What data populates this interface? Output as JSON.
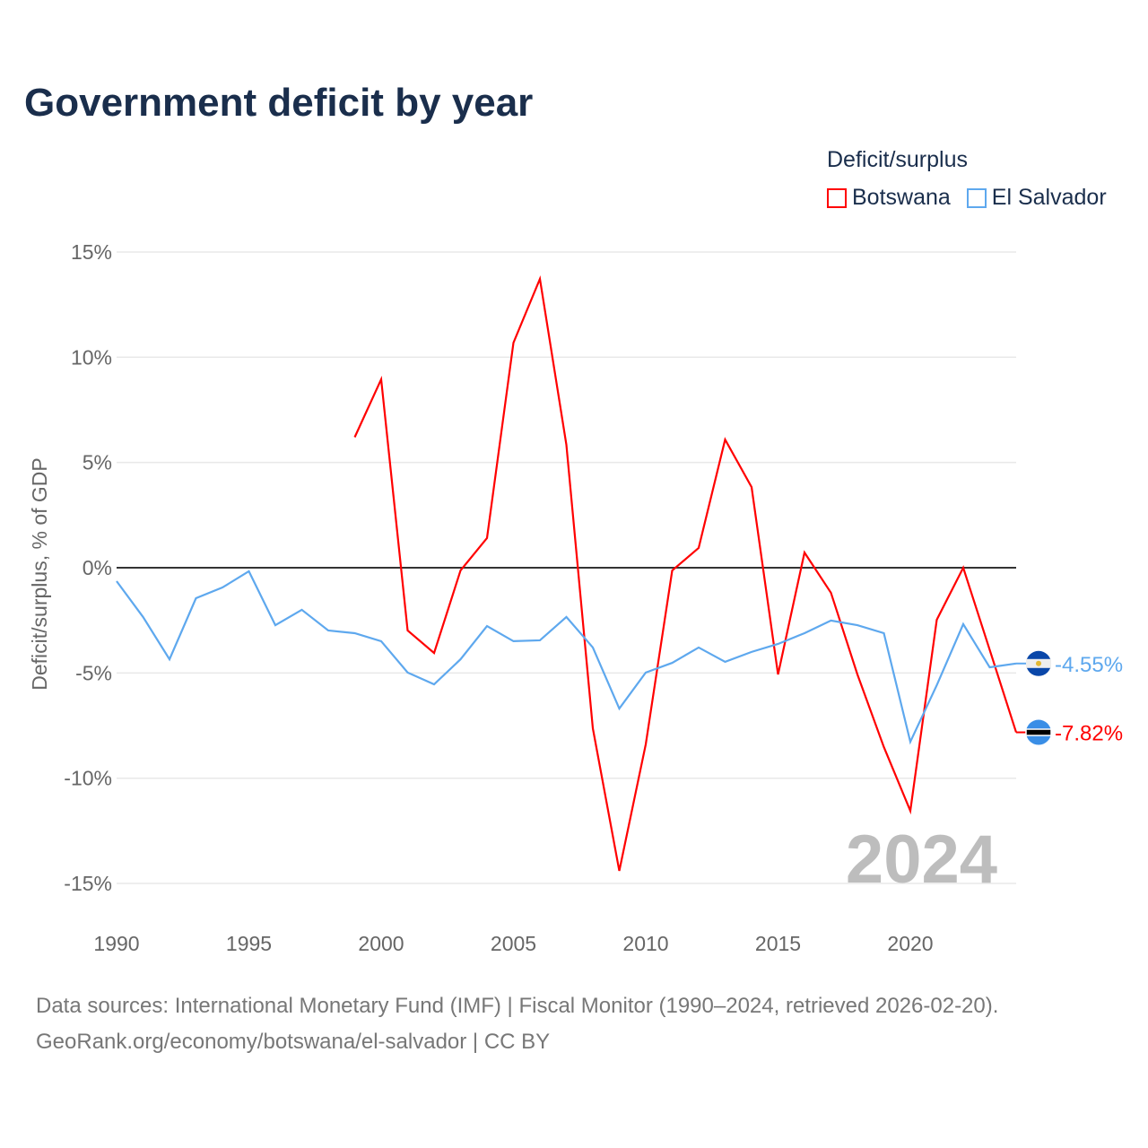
{
  "title": "Government deficit by year",
  "legend_title": "Deficit/surplus",
  "footer": {
    "line1": "Data sources: International Monetary Fund (IMF) | Fiscal Monitor (1990–2024, retrieved 2026-02-20).",
    "line2": "GeoRank.org/economy/botswana/el-salvador | CC BY"
  },
  "chart_data": {
    "type": "line",
    "title": "Government deficit by year",
    "xlabel": "",
    "ylabel": "Deficit/surplus, % of GDP",
    "xlim": [
      1990,
      2024
    ],
    "ylim": [
      -15,
      15
    ],
    "xticks": [
      "1990",
      "1995",
      "2000",
      "2005",
      "2010",
      "2015",
      "2020"
    ],
    "yticks": [
      "15%",
      "10%",
      "5%",
      "0%",
      "-5%",
      "-10%",
      "-15%"
    ],
    "year_watermark": "2024",
    "series": [
      {
        "name": "Botswana",
        "color": "#ff0000",
        "end_label": "-7.82%",
        "x": [
          1999,
          2000,
          2001,
          2002,
          2003,
          2004,
          2005,
          2006,
          2007,
          2008,
          2009,
          2010,
          2011,
          2012,
          2013,
          2014,
          2015,
          2016,
          2017,
          2018,
          2019,
          2020,
          2021,
          2022,
          2023,
          2024
        ],
        "values": [
          6.2,
          8.95,
          -2.98,
          -4.05,
          -0.13,
          1.41,
          10.69,
          13.72,
          5.84,
          -7.63,
          -14.4,
          -8.39,
          -0.13,
          0.94,
          6.09,
          3.83,
          -5.07,
          0.72,
          -1.19,
          -5.07,
          -8.52,
          -11.55,
          -2.47,
          0.0,
          -3.9,
          -7.82
        ]
      },
      {
        "name": "El Salvador",
        "color": "#5ea8ee",
        "end_label": "-4.55%",
        "x": [
          1990,
          1991,
          1992,
          1993,
          1994,
          1995,
          1996,
          1997,
          1998,
          1999,
          2000,
          2001,
          2002,
          2003,
          2004,
          2005,
          2006,
          2007,
          2008,
          2009,
          2010,
          2011,
          2012,
          2013,
          2014,
          2015,
          2016,
          2017,
          2018,
          2019,
          2020,
          2021,
          2022,
          2023,
          2024
        ],
        "values": [
          -0.64,
          -2.34,
          -4.35,
          -1.45,
          -0.94,
          -0.17,
          -2.73,
          -2.0,
          -2.98,
          -3.11,
          -3.49,
          -4.98,
          -5.54,
          -4.35,
          -2.77,
          -3.49,
          -3.45,
          -2.34,
          -3.79,
          -6.69,
          -4.98,
          -4.52,
          -3.79,
          -4.47,
          -4.0,
          -3.62,
          -3.11,
          -2.51,
          -2.73,
          -3.11,
          -8.27,
          -5.58,
          -2.68,
          -4.73,
          -4.55
        ]
      }
    ]
  }
}
